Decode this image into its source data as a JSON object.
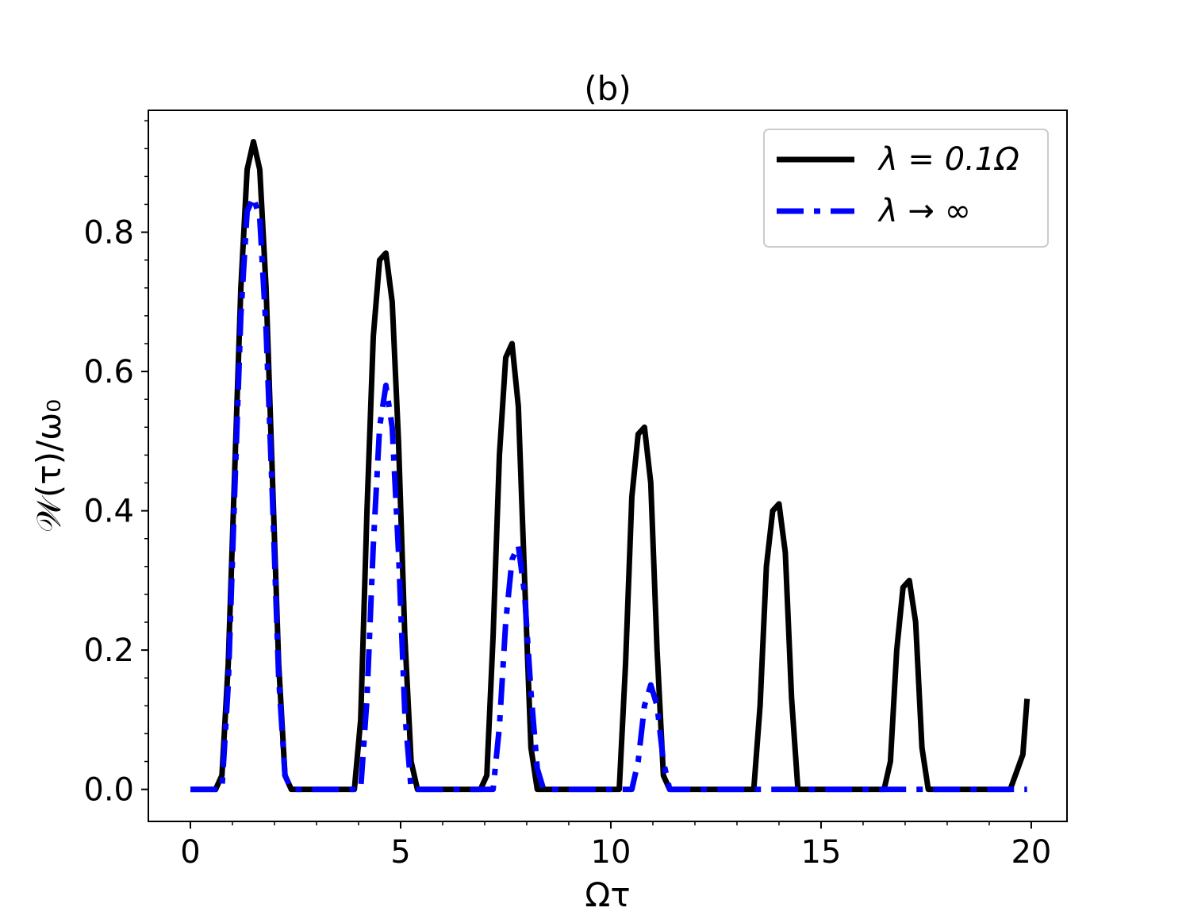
{
  "chart_data": {
    "type": "line",
    "title": "(b)",
    "xlabel": "Ωτ",
    "ylabel": "𝒲(τ)/ω₀",
    "xlim": [
      -1,
      20.85
    ],
    "ylim": [
      -0.046,
      0.975
    ],
    "xticks": [
      0,
      5,
      10,
      15,
      20
    ],
    "xtick_labels": [
      "0",
      "5",
      "10",
      "15",
      "20"
    ],
    "yticks": [
      0.0,
      0.2,
      0.4,
      0.6,
      0.8
    ],
    "ytick_labels": [
      "0.0",
      "0.2",
      "0.4",
      "0.6",
      "0.8"
    ],
    "legend_position": "top-right",
    "series": [
      {
        "name": "λ = 0.1Ω",
        "color": "#000000",
        "style": "solid",
        "x": [
          0.0,
          0.15,
          0.3,
          0.45,
          0.6,
          0.75,
          0.9,
          1.05,
          1.2,
          1.35,
          1.5,
          1.65,
          1.8,
          1.95,
          2.1,
          2.25,
          2.4,
          2.55,
          2.7,
          3.0,
          3.3,
          3.6,
          3.9,
          4.05,
          4.2,
          4.35,
          4.5,
          4.65,
          4.8,
          4.95,
          5.1,
          5.25,
          5.4,
          5.55,
          5.7,
          6.0,
          6.3,
          6.6,
          6.9,
          7.05,
          7.2,
          7.35,
          7.5,
          7.65,
          7.8,
          7.95,
          8.1,
          8.25,
          8.4,
          8.55,
          8.7,
          9.0,
          9.3,
          9.6,
          9.9,
          10.2,
          10.35,
          10.5,
          10.65,
          10.8,
          10.95,
          11.1,
          11.25,
          11.4,
          11.55,
          11.7,
          12.0,
          12.5,
          13.0,
          13.4,
          13.55,
          13.7,
          13.85,
          14.0,
          14.15,
          14.3,
          14.45,
          14.6,
          14.75,
          15.0,
          15.5,
          16.0,
          16.5,
          16.65,
          16.8,
          16.95,
          17.1,
          17.25,
          17.4,
          17.55,
          17.7,
          18.0,
          18.5,
          19.0,
          19.5,
          19.8,
          19.9
        ],
        "y": [
          0.0,
          0.0,
          0.0,
          0.0,
          0.0,
          0.02,
          0.18,
          0.45,
          0.72,
          0.89,
          0.93,
          0.89,
          0.72,
          0.45,
          0.18,
          0.02,
          0.0,
          0.0,
          0.0,
          0.0,
          0.0,
          0.0,
          0.0,
          0.1,
          0.4,
          0.65,
          0.76,
          0.77,
          0.7,
          0.5,
          0.22,
          0.04,
          0.0,
          0.0,
          0.0,
          0.0,
          0.0,
          0.0,
          0.0,
          0.02,
          0.22,
          0.48,
          0.62,
          0.64,
          0.55,
          0.3,
          0.06,
          0.0,
          0.0,
          0.0,
          0.0,
          0.0,
          0.0,
          0.0,
          0.0,
          0.0,
          0.18,
          0.42,
          0.51,
          0.52,
          0.44,
          0.2,
          0.02,
          0.0,
          0.0,
          0.0,
          0.0,
          0.0,
          0.0,
          0.0,
          0.12,
          0.32,
          0.4,
          0.41,
          0.34,
          0.13,
          0.0,
          0.0,
          0.0,
          0.0,
          0.0,
          0.0,
          0.0,
          0.04,
          0.2,
          0.29,
          0.3,
          0.24,
          0.06,
          0.0,
          0.0,
          0.0,
          0.0,
          0.0,
          0.0,
          0.05,
          0.13
        ]
      },
      {
        "name": "λ → ∞",
        "color": "#0000ff",
        "style": "dashdot",
        "x": [
          0.0,
          0.15,
          0.3,
          0.45,
          0.6,
          0.75,
          0.9,
          1.05,
          1.2,
          1.35,
          1.5,
          1.65,
          1.8,
          1.95,
          2.1,
          2.25,
          2.4,
          2.55,
          2.7,
          3.0,
          3.3,
          3.6,
          3.9,
          4.05,
          4.2,
          4.35,
          4.5,
          4.65,
          4.8,
          4.95,
          5.1,
          5.25,
          5.4,
          5.55,
          5.7,
          6.0,
          6.3,
          6.6,
          6.9,
          7.2,
          7.35,
          7.5,
          7.65,
          7.8,
          7.95,
          8.1,
          8.25,
          8.4,
          8.55,
          8.7,
          9.0,
          9.5,
          10.0,
          10.5,
          10.65,
          10.8,
          10.95,
          11.1,
          11.25,
          11.4,
          11.55,
          12.0,
          13.0,
          14.0,
          15.0,
          16.0,
          17.0,
          18.0,
          19.0,
          19.9
        ],
        "y": [
          0.0,
          0.0,
          0.0,
          0.0,
          0.0,
          0.0,
          0.15,
          0.42,
          0.68,
          0.83,
          0.85,
          0.82,
          0.66,
          0.42,
          0.16,
          0.02,
          0.0,
          0.0,
          0.0,
          0.0,
          0.0,
          0.0,
          0.0,
          0.0,
          0.13,
          0.35,
          0.52,
          0.58,
          0.52,
          0.34,
          0.11,
          0.0,
          0.0,
          0.0,
          0.0,
          0.0,
          0.0,
          0.0,
          0.0,
          0.0,
          0.09,
          0.24,
          0.33,
          0.35,
          0.28,
          0.14,
          0.03,
          0.0,
          0.0,
          0.0,
          0.0,
          0.0,
          0.0,
          0.0,
          0.04,
          0.12,
          0.15,
          0.12,
          0.04,
          0.0,
          0.0,
          0.0,
          0.0,
          0.0,
          0.0,
          0.0,
          0.0,
          0.0,
          0.0,
          0.0
        ]
      }
    ]
  }
}
